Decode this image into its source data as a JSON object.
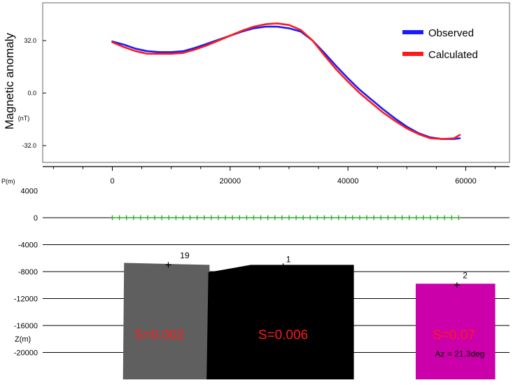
{
  "chart_data": [
    {
      "type": "line",
      "ylabel": "Magnetic anomaly",
      "yunit": "(nT)",
      "ylim": [
        -37,
        40
      ],
      "xlim": [
        -9500,
        67000
      ],
      "y_ticks": [
        32.0,
        0.0,
        -32.0
      ],
      "y_tick_labels": [
        "32.0",
        "0.0",
        "-32.0"
      ],
      "legend_position": "top-right",
      "series": [
        {
          "name": "Observed",
          "color": "#1a1aff",
          "x": [
            0,
            2000,
            4000,
            6000,
            8000,
            10000,
            12000,
            14000,
            16000,
            18000,
            20000,
            22000,
            24000,
            26000,
            28000,
            30000,
            32000,
            34000,
            36000,
            38000,
            40000,
            42000,
            44000,
            46000,
            48000,
            50000,
            52000,
            54000,
            56000,
            58000,
            59000
          ],
          "y": [
            31.5,
            29.5,
            27.0,
            25.5,
            25.0,
            25.0,
            25.5,
            27.5,
            30.0,
            32.5,
            35.0,
            37.5,
            39.5,
            40.5,
            40.5,
            39.5,
            37.5,
            32.0,
            24.5,
            16.5,
            9.0,
            2.0,
            -4.0,
            -10.0,
            -15.5,
            -20.5,
            -24.5,
            -27.0,
            -28.0,
            -28.0,
            -27.5
          ]
        },
        {
          "name": "Calculated",
          "color": "#ff1a1a",
          "x": [
            0,
            2000,
            4000,
            6000,
            8000,
            10000,
            12000,
            14000,
            16000,
            18000,
            20000,
            22000,
            24000,
            26000,
            28000,
            30000,
            32000,
            34000,
            36000,
            38000,
            40000,
            42000,
            44000,
            46000,
            48000,
            50000,
            52000,
            54000,
            56000,
            58000,
            59000
          ],
          "y": [
            31.0,
            28.0,
            25.5,
            24.0,
            24.0,
            24.0,
            24.5,
            26.5,
            29.0,
            32.0,
            35.0,
            38.0,
            40.5,
            42.0,
            42.5,
            41.5,
            38.5,
            32.0,
            23.0,
            14.5,
            7.0,
            0.0,
            -6.0,
            -12.0,
            -17.0,
            -21.5,
            -25.0,
            -27.5,
            -28.0,
            -27.5,
            -25.5
          ]
        }
      ]
    },
    {
      "type": "area",
      "xlabel": "P(m)",
      "ylabel": "Z(m)",
      "xlim": [
        -9500,
        67000
      ],
      "ylim": [
        -24000,
        4000
      ],
      "x_ticks": [
        0,
        20000,
        40000,
        60000
      ],
      "x_tick_labels": [
        "0",
        "20000",
        "40000",
        "60000"
      ],
      "y_ticks": [
        4000,
        0,
        -4000,
        -8000,
        -12000,
        -16000,
        -20000
      ],
      "y_tick_labels": [
        "4000",
        "0",
        "-4000",
        "-8000",
        "-12000",
        "-16000",
        "-20000"
      ],
      "grid": true,
      "stations": {
        "x_start": 0,
        "x_end": 59000,
        "step": 1200,
        "z": 0,
        "color": "#2eaa2e"
      },
      "bodies": [
        {
          "id": "19",
          "label": "19",
          "susceptibility": "S=0.002",
          "color": "#5f5f5f",
          "polygon": [
            [
              2000,
              -6700
            ],
            [
              16500,
              -7000
            ],
            [
              16500,
              -24000
            ],
            [
              1800,
              -24000
            ]
          ],
          "marker": [
            9500,
            -7000
          ],
          "label_at": [
            11500,
            -6000
          ],
          "s_at": [
            8000,
            -18000
          ]
        },
        {
          "id": "1",
          "label": "1",
          "susceptibility": "S=0.006",
          "color": "#000000",
          "polygon": [
            [
              16300,
              -8100
            ],
            [
              19000,
              -7700
            ],
            [
              23500,
              -7000
            ],
            [
              41000,
              -7000
            ],
            [
              41000,
              -24000
            ],
            [
              16000,
              -24000
            ]
          ],
          "marker": [
            29000,
            -7200
          ],
          "label_at": [
            29500,
            -6600
          ],
          "s_at": [
            29000,
            -18000
          ]
        },
        {
          "id": "2",
          "label": "2",
          "susceptibility": "S=0.07",
          "color": "#cc00aa",
          "polygon": [
            [
              51500,
              -9800
            ],
            [
              65000,
              -9800
            ],
            [
              65000,
              -24000
            ],
            [
              51500,
              -24000
            ]
          ],
          "marker": [
            58500,
            -10000
          ],
          "label_at": [
            59500,
            -9000
          ],
          "s_at": [
            58000,
            -18000
          ]
        }
      ],
      "annotation": "Az = 21.3deg",
      "annotation_at": [
        59000,
        -20600
      ]
    }
  ]
}
